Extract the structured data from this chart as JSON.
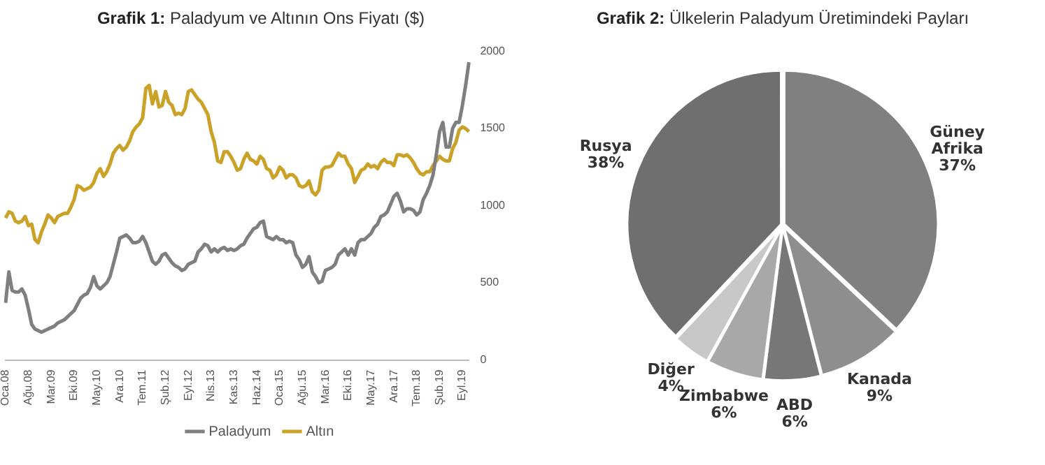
{
  "chart_data": [
    {
      "type": "line",
      "title": "Grafik 1: Paladyum ve Altının Ons Fiyatı ($)",
      "categories": [
        "Oca.08",
        null,
        null,
        null,
        null,
        null,
        null,
        "Ağu.08",
        null,
        null,
        null,
        null,
        null,
        null,
        "Mar.09",
        null,
        null,
        null,
        null,
        null,
        null,
        "Eki.09",
        null,
        null,
        null,
        null,
        null,
        null,
        "May.10",
        null,
        null,
        null,
        null,
        null,
        null,
        "Ara.10",
        null,
        null,
        null,
        null,
        null,
        null,
        "Tem.11",
        null,
        null,
        null,
        null,
        null,
        null,
        "Şub.12",
        null,
        null,
        null,
        null,
        null,
        null,
        "Eyl.12",
        null,
        null,
        null,
        null,
        null,
        null,
        "Nis.13",
        null,
        null,
        null,
        null,
        null,
        null,
        "Kas.13",
        null,
        null,
        null,
        null,
        null,
        null,
        "Haz.14",
        null,
        null,
        null,
        null,
        null,
        null,
        "Oca.15",
        null,
        null,
        null,
        null,
        null,
        null,
        "Ağu.15",
        null,
        null,
        null,
        null,
        null,
        null,
        "Mar.16",
        null,
        null,
        null,
        null,
        null,
        null,
        "Eki.16",
        null,
        null,
        null,
        null,
        null,
        null,
        "May.17",
        null,
        null,
        null,
        null,
        null,
        null,
        "Ara.17",
        null,
        null,
        null,
        null,
        null,
        null,
        "Tem.18",
        null,
        null,
        null,
        null,
        null,
        null,
        "Şub.19",
        null,
        null,
        null,
        null,
        null,
        null,
        "Eyl.19",
        null,
        null
      ],
      "series": [
        {
          "name": "Paladyum",
          "color": "#7f7f7f",
          "values": [
            370,
            570,
            450,
            440,
            440,
            460,
            420,
            330,
            230,
            200,
            190,
            180,
            190,
            200,
            210,
            220,
            240,
            250,
            260,
            280,
            300,
            320,
            360,
            400,
            420,
            430,
            470,
            540,
            480,
            460,
            480,
            500,
            540,
            620,
            700,
            790,
            800,
            810,
            790,
            760,
            760,
            770,
            800,
            760,
            700,
            640,
            620,
            640,
            680,
            690,
            660,
            630,
            610,
            600,
            580,
            590,
            620,
            630,
            640,
            700,
            720,
            750,
            740,
            700,
            720,
            700,
            720,
            730,
            710,
            720,
            710,
            720,
            740,
            750,
            790,
            820,
            850,
            860,
            890,
            900,
            800,
            790,
            780,
            800,
            780,
            780,
            760,
            770,
            760,
            680,
            650,
            600,
            620,
            670,
            570,
            540,
            500,
            510,
            580,
            590,
            600,
            620,
            680,
            700,
            720,
            680,
            720,
            680,
            760,
            780,
            780,
            800,
            820,
            860,
            880,
            930,
            940,
            960,
            1010,
            1060,
            1080,
            1030,
            960,
            980,
            980,
            970,
            940,
            960,
            1040,
            1080,
            1130,
            1200,
            1330,
            1480,
            1540,
            1380,
            1380,
            1500,
            1540,
            1540,
            1650,
            1780,
            1930
          ]
        },
        {
          "name": "Altın",
          "color": "#c9a227",
          "values": [
            920,
            960,
            950,
            900,
            890,
            900,
            930,
            870,
            880,
            780,
            760,
            830,
            880,
            940,
            920,
            890,
            930,
            940,
            950,
            950,
            990,
            1040,
            1130,
            1120,
            1100,
            1110,
            1120,
            1150,
            1210,
            1240,
            1190,
            1220,
            1270,
            1340,
            1370,
            1390,
            1360,
            1380,
            1420,
            1480,
            1510,
            1530,
            1570,
            1760,
            1780,
            1660,
            1740,
            1640,
            1650,
            1740,
            1670,
            1650,
            1590,
            1600,
            1590,
            1630,
            1740,
            1750,
            1720,
            1690,
            1670,
            1630,
            1590,
            1480,
            1410,
            1290,
            1280,
            1350,
            1350,
            1320,
            1280,
            1230,
            1240,
            1300,
            1340,
            1300,
            1290,
            1270,
            1320,
            1300,
            1240,
            1230,
            1180,
            1200,
            1250,
            1230,
            1180,
            1200,
            1200,
            1180,
            1130,
            1120,
            1130,
            1160,
            1090,
            1070,
            1100,
            1230,
            1250,
            1250,
            1260,
            1300,
            1340,
            1320,
            1320,
            1270,
            1240,
            1150,
            1190,
            1230,
            1240,
            1270,
            1250,
            1260,
            1240,
            1280,
            1300,
            1280,
            1280,
            1260,
            1330,
            1330,
            1320,
            1330,
            1310,
            1280,
            1240,
            1210,
            1200,
            1220,
            1220,
            1260,
            1290,
            1320,
            1300,
            1290,
            1290,
            1370,
            1410,
            1490,
            1510,
            1500,
            1480
          ]
        }
      ],
      "ylim": [
        0,
        2000
      ],
      "yticks": [
        0,
        500,
        1000,
        1500,
        2000
      ],
      "grid": false,
      "legend": "bottom",
      "marker": "none"
    },
    {
      "type": "pie",
      "title": "Grafik 2: Ülkelerin Paladyum Üretimindeki Payları",
      "categories": [
        "Güney Afrika",
        "Kanada",
        "ABD",
        "Zimbabwe",
        "Diğer",
        "Rusya"
      ],
      "values": [
        37,
        9,
        6,
        6,
        4,
        38
      ],
      "colors": [
        "#808080",
        "#8e8e8e",
        "#777777",
        "#a8a8a8",
        "#c8c8c8",
        "#6f6f6f"
      ],
      "value_labels": [
        "37%",
        "9%",
        "6%",
        "6%",
        "4%",
        "38%"
      ],
      "legend": false
    }
  ]
}
